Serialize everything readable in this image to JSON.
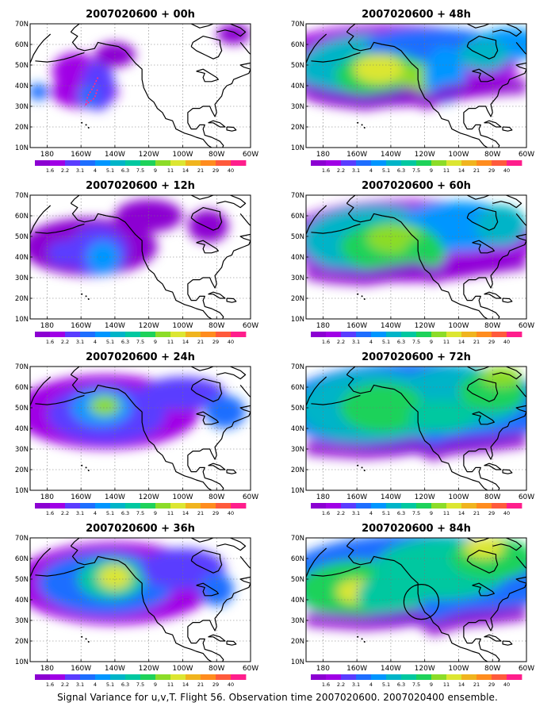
{
  "panels": [
    {
      "title": "2007020600 + 00h",
      "lead": "00h"
    },
    {
      "title": "2007020600 + 48h",
      "lead": "48h"
    },
    {
      "title": "2007020600 + 12h",
      "lead": "12h"
    },
    {
      "title": "2007020600 + 60h",
      "lead": "60h"
    },
    {
      "title": "2007020600 + 24h",
      "lead": "24h"
    },
    {
      "title": "2007020600 + 72h",
      "lead": "72h"
    },
    {
      "title": "2007020600 + 36h",
      "lead": "36h"
    },
    {
      "title": "2007020600 + 84h",
      "lead": "84h"
    }
  ],
  "axes": {
    "lon_labels": [
      "180",
      "160W",
      "140W",
      "120W",
      "100W",
      "80W",
      "60W"
    ],
    "lat_labels": [
      "70N",
      "60N",
      "50N",
      "40N",
      "30N",
      "20N",
      "10N"
    ],
    "lon_range": [
      -190,
      -60
    ],
    "lat_range": [
      10,
      70
    ],
    "grid": "dotted"
  },
  "colorbar": {
    "labels": [
      "1.6",
      "2.2",
      "3.1",
      "4",
      "5.1",
      "6.3",
      "7.5",
      "9",
      "11",
      "14",
      "21",
      "29",
      "40"
    ],
    "colors": [
      "#8c00d2",
      "#a000e6",
      "#5a3cff",
      "#1e6eff",
      "#0096ff",
      "#00b4c8",
      "#00c8a0",
      "#1ed25a",
      "#8cdc28",
      "#dce632",
      "#f0b41e",
      "#ff8c1e",
      "#ff5a3c",
      "#ff1e8c"
    ]
  },
  "caption": "Signal Variance for u,v,T. Flight 56. Observation time 2007020600. 2007020400 ensemble."
}
